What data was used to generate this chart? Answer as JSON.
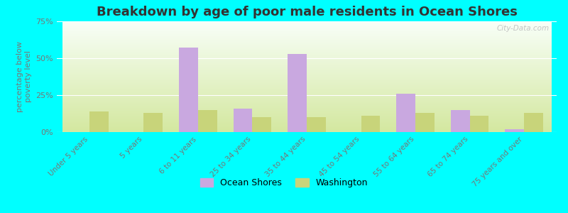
{
  "title": "Breakdown by age of poor male residents in Ocean Shores",
  "ylabel": "percentage below\npoverty level",
  "categories": [
    "Under 5 years",
    "5 years",
    "6 to 11 years",
    "25 to 34 years",
    "35 to 44 years",
    "45 to 54 years",
    "55 to 64 years",
    "65 to 74 years",
    "75 years and over"
  ],
  "ocean_shores": [
    0,
    0,
    57,
    16,
    53,
    0,
    26,
    15,
    2
  ],
  "washington": [
    14,
    13,
    15,
    10,
    10,
    11,
    13,
    11,
    13
  ],
  "ocean_shores_color": "#c9a8e0",
  "washington_color": "#c8d47a",
  "background_color": "#00ffff",
  "plot_bg_top": "#f8fff8",
  "plot_bg_bottom": "#d4e8a0",
  "ylim": [
    0,
    75
  ],
  "yticks": [
    0,
    25,
    50,
    75
  ],
  "bar_width": 0.35,
  "title_fontsize": 13,
  "legend_labels": [
    "Ocean Shores",
    "Washington"
  ],
  "watermark": "City-Data.com"
}
